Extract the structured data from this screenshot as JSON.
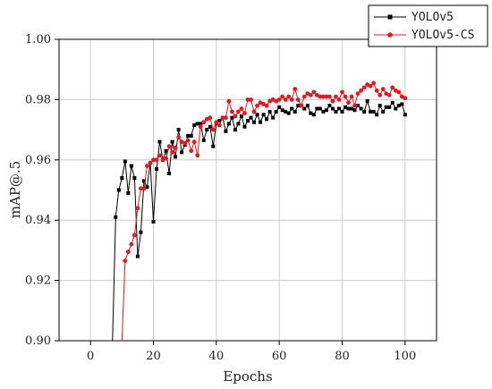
{
  "chart_data": {
    "type": "line",
    "title": "",
    "xlabel": "Epochs",
    "ylabel": "mAP@.5",
    "xlim": [
      -10,
      110
    ],
    "ylim": [
      0.9,
      1.0
    ],
    "xticks": [
      0,
      20,
      40,
      60,
      80,
      100
    ],
    "yticks": [
      0.9,
      0.92,
      0.94,
      0.96,
      0.98,
      1.0
    ],
    "xtick_labels": [
      "0",
      "20",
      "40",
      "60",
      "80",
      "100"
    ],
    "ytick_labels": [
      "0.90",
      "0.92",
      "0.94",
      "0.96",
      "0.98",
      "1.00"
    ],
    "grid": true,
    "legend_position": "top-right",
    "series": [
      {
        "name": "YOLOv5",
        "color": "#000000",
        "marker": "square",
        "x": [
          7,
          8,
          9,
          10,
          11,
          12,
          13,
          14,
          15,
          16,
          17,
          18,
          19,
          20,
          21,
          22,
          23,
          24,
          25,
          26,
          27,
          28,
          29,
          30,
          31,
          32,
          33,
          34,
          35,
          36,
          37,
          38,
          39,
          40,
          41,
          42,
          43,
          44,
          45,
          46,
          47,
          48,
          49,
          50,
          51,
          52,
          53,
          54,
          55,
          56,
          57,
          58,
          59,
          60,
          61,
          62,
          63,
          64,
          65,
          66,
          67,
          68,
          69,
          70,
          71,
          72,
          73,
          74,
          75,
          76,
          77,
          78,
          79,
          80,
          81,
          82,
          83,
          84,
          85,
          86,
          87,
          88,
          89,
          90,
          91,
          92,
          93,
          94,
          95,
          96,
          97,
          98,
          99,
          100
        ],
        "y": [
          0.885,
          0.941,
          0.95,
          0.954,
          0.9595,
          0.949,
          0.958,
          0.954,
          0.928,
          0.936,
          0.953,
          0.951,
          0.959,
          0.9395,
          0.957,
          0.966,
          0.96,
          0.963,
          0.9555,
          0.966,
          0.961,
          0.97,
          0.9625,
          0.965,
          0.968,
          0.968,
          0.9715,
          0.972,
          0.972,
          0.9665,
          0.97,
          0.971,
          0.9645,
          0.972,
          0.973,
          0.974,
          0.9695,
          0.972,
          0.974,
          0.97,
          0.972,
          0.9745,
          0.971,
          0.973,
          0.974,
          0.9725,
          0.975,
          0.9725,
          0.975,
          0.9735,
          0.976,
          0.974,
          0.976,
          0.9775,
          0.9765,
          0.976,
          0.9755,
          0.977,
          0.976,
          0.978,
          0.978,
          0.977,
          0.978,
          0.9755,
          0.975,
          0.977,
          0.977,
          0.976,
          0.9765,
          0.978,
          0.977,
          0.976,
          0.977,
          0.976,
          0.9775,
          0.977,
          0.977,
          0.9765,
          0.978,
          0.977,
          0.976,
          0.9795,
          0.976,
          0.976,
          0.975,
          0.978,
          0.976,
          0.9775,
          0.9775,
          0.979,
          0.977,
          0.978,
          0.9785,
          0.975
        ]
      },
      {
        "name": "YOLOv5-CS",
        "color": "#e8161e",
        "marker": "circle",
        "x": [
          10,
          11,
          12,
          13,
          14,
          15,
          16,
          17,
          18,
          19,
          20,
          21,
          22,
          23,
          24,
          25,
          26,
          27,
          28,
          29,
          30,
          31,
          32,
          33,
          34,
          35,
          36,
          37,
          38,
          39,
          40,
          41,
          42,
          43,
          44,
          45,
          46,
          47,
          48,
          49,
          50,
          51,
          52,
          53,
          54,
          55,
          56,
          57,
          58,
          59,
          60,
          61,
          62,
          63,
          64,
          65,
          66,
          67,
          68,
          69,
          70,
          71,
          72,
          73,
          74,
          75,
          76,
          77,
          78,
          79,
          80,
          81,
          82,
          83,
          84,
          85,
          86,
          87,
          88,
          89,
          90,
          91,
          92,
          93,
          94,
          95,
          96,
          97,
          98,
          99,
          100
        ],
        "y": [
          0.8995,
          0.9265,
          0.9295,
          0.932,
          0.935,
          0.944,
          0.9505,
          0.9505,
          0.958,
          0.959,
          0.96,
          0.96,
          0.9615,
          0.96,
          0.9605,
          0.9645,
          0.9625,
          0.964,
          0.9675,
          0.966,
          0.9655,
          0.9665,
          0.963,
          0.966,
          0.9615,
          0.971,
          0.9725,
          0.9735,
          0.974,
          0.97,
          0.9725,
          0.9715,
          0.974,
          0.974,
          0.9795,
          0.976,
          0.9745,
          0.976,
          0.977,
          0.9755,
          0.98,
          0.98,
          0.976,
          0.978,
          0.979,
          0.9785,
          0.978,
          0.9795,
          0.98,
          0.9795,
          0.98,
          0.981,
          0.98,
          0.981,
          0.98,
          0.9835,
          0.98,
          0.978,
          0.981,
          0.982,
          0.9815,
          0.9825,
          0.9815,
          0.981,
          0.981,
          0.981,
          0.981,
          0.9795,
          0.981,
          0.98,
          0.9825,
          0.981,
          0.979,
          0.981,
          0.978,
          0.982,
          0.983,
          0.984,
          0.985,
          0.9845,
          0.9855,
          0.983,
          0.9815,
          0.9835,
          0.982,
          0.9815,
          0.984,
          0.983,
          0.9825,
          0.981,
          0.9805
        ]
      }
    ]
  }
}
